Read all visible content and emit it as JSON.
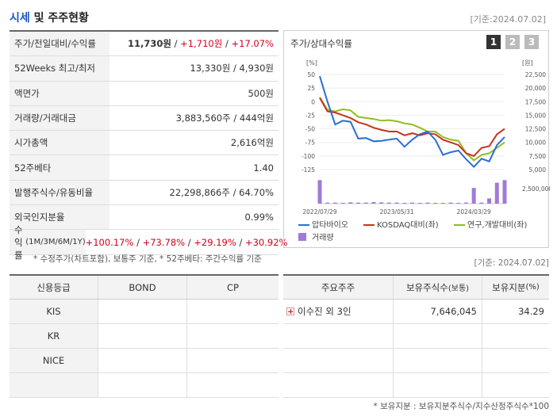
{
  "header": {
    "title_hl": "시세",
    "title_rest": " 및 주주현황",
    "base_date": "[기준:2024.07.02]"
  },
  "summary": {
    "price_label": "주가/전일대비/수익률",
    "price": "11,730원",
    "change": "+1,710원",
    "change_pct": "+17.07%",
    "w52_label": "52Weeks 최고/최저",
    "w52_value": "13,330원 / 4,930원",
    "face_label": "액면가",
    "face_value": "500원",
    "volume_label": "거래량/거래대금",
    "volume_value": "3,883,560주 / 444억원",
    "mcap_label": "시가총액",
    "mcap_value": "2,616억원",
    "beta_label": "52주베타",
    "beta_value": "1.40",
    "shares_label": "발행주식수/유동비율",
    "shares_value": "22,298,866주 / 64.70%",
    "foreign_label": "외국인지분율",
    "foreign_value": "0.99%",
    "return_label": "수익률",
    "return_periods": "(1M/3M/6M/1Y)",
    "return_1m": "+100.17%",
    "return_3m": "+73.78%",
    "return_6m": "+29.19%",
    "return_1y": "+30.92%",
    "note": "* 수정주가(차트포함), 보통주 기준, * 52주베타: 주간수익률 기준"
  },
  "chart": {
    "title": "주가/상대수익률",
    "tabs": [
      "1",
      "2",
      "3"
    ],
    "left_unit": "[%]",
    "right_unit": "[원]",
    "left_ticks": [
      "50",
      "25",
      "0",
      "-25",
      "-50",
      "-75",
      "-100",
      "-125"
    ],
    "right_ticks": [
      "22,500",
      "20,000",
      "17,500",
      "15,000",
      "12,500",
      "10,000",
      "7,500",
      "5,000"
    ],
    "vol_tick": "2,500,000",
    "x_ticks": [
      "2022/07/29",
      "2023/05/31",
      "2024/03/29"
    ],
    "legend": [
      "압타바이오",
      "KOSDAQ대비(좌)",
      "연구,개발대비(좌)",
      "거래량"
    ],
    "colors": {
      "stock": "#2a6fd6",
      "kosdaq": "#c8321e",
      "rnd": "#8fbf1f",
      "volume": "#a07ad6"
    }
  },
  "chart_data": {
    "type": "line",
    "x": [
      "2022/07",
      "2022/08",
      "2022/09",
      "2022/10",
      "2022/11",
      "2022/12",
      "2023/01",
      "2023/02",
      "2023/03",
      "2023/04",
      "2023/05",
      "2023/06",
      "2023/07",
      "2023/08",
      "2023/09",
      "2023/10",
      "2023/11",
      "2023/12",
      "2024/01",
      "2024/02",
      "2024/03",
      "2024/04",
      "2024/05",
      "2024/06",
      "2024/07"
    ],
    "series": [
      {
        "name": "압타바이오",
        "values": [
          47,
          0,
          -42,
          -35,
          -37,
          -68,
          -67,
          -73,
          -72,
          -70,
          -68,
          -83,
          -70,
          -60,
          -55,
          -70,
          -98,
          -93,
          -90,
          -106,
          -120,
          -105,
          -110,
          -80,
          -65
        ]
      },
      {
        "name": "KOSDAQ대비(좌)",
        "values": [
          7,
          -18,
          -20,
          -25,
          -30,
          -38,
          -42,
          -48,
          -52,
          -55,
          -55,
          -62,
          -58,
          -62,
          -58,
          -60,
          -70,
          -75,
          -80,
          -95,
          -100,
          -85,
          -82,
          -60,
          -50
        ]
      },
      {
        "name": "연구,개발대비(좌)",
        "values": [
          8,
          -15,
          -18,
          -14,
          -16,
          -28,
          -30,
          -32,
          -35,
          -34,
          -36,
          -40,
          -42,
          -48,
          -55,
          -55,
          -65,
          -70,
          -72,
          -95,
          -108,
          -98,
          -95,
          -85,
          -75
        ]
      }
    ],
    "ylim": [
      -125,
      50
    ],
    "y2lim": [
      5000,
      22500
    ],
    "volume": [
      9,
      0.4,
      0.4,
      0.3,
      0.5,
      0.4,
      0.4,
      0.6,
      0.5,
      0.4,
      0.4,
      0.3,
      0.4,
      0.3,
      0.4,
      0.3,
      0.3,
      0.4,
      0.3,
      0.4,
      6,
      0.4,
      2,
      8,
      9
    ]
  },
  "credit": {
    "headers": [
      "신용등급",
      "BOND",
      "CP"
    ],
    "rows": [
      "KIS",
      "KR",
      "NICE"
    ]
  },
  "holders": {
    "base_date": "[기준: 2024.07.02]",
    "headers": [
      "주요주주",
      "보유주식수",
      "(보통)",
      "보유지분",
      "(%)"
    ],
    "rows": [
      {
        "name": "이수진 외 3인",
        "shares": "7,646,045",
        "pct": "34.29"
      }
    ],
    "note": "* 보유지분 : 보유지분주식수/지수산정주식수*100"
  }
}
